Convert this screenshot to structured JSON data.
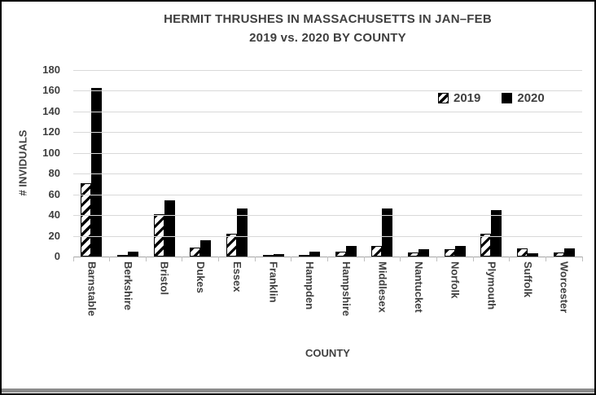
{
  "title_line1": "HERMIT THRUSHES IN MASSACHUSETTS IN JAN–FEB",
  "title_line2": "2019 vs. 2020 BY COUNTY",
  "colors": {
    "text": "#404040",
    "bar_2020": "#000000",
    "bar_2019_hatch": "#000000",
    "gridline": "#d9d9d9",
    "axis_line": "#a6a6a6",
    "bottom_band": "#8c8c8c"
  },
  "chart_data": {
    "type": "bar",
    "title": "HERMIT THRUSHES IN MASSACHUSETTS IN JAN–FEB 2019 vs. 2020 BY COUNTY",
    "xlabel": "COUNTY",
    "ylabel": "# INVIDUALS",
    "ylim": [
      0,
      180
    ],
    "yticks": [
      0,
      20,
      40,
      60,
      80,
      100,
      120,
      140,
      160,
      180
    ],
    "grid": "horizontal",
    "legend_position": "inside-top-right",
    "categories": [
      "Barnstable",
      "Berkshire",
      "Bristol",
      "Dukes",
      "Essex",
      "Franklin",
      "Hampden",
      "Hampshire",
      "Middlesex",
      "Nantucket",
      "Norfolk",
      "Plymouth",
      "Suffolk",
      "Worcester"
    ],
    "series": [
      {
        "name": "2019",
        "style": "hatched",
        "values": [
          71,
          1,
          41,
          9,
          22,
          1,
          1,
          5,
          10,
          4,
          7,
          22,
          8,
          4
        ]
      },
      {
        "name": "2020",
        "style": "solid",
        "values": [
          163,
          5,
          54,
          16,
          46,
          2,
          5,
          10,
          46,
          7,
          10,
          45,
          3,
          8
        ]
      }
    ]
  }
}
